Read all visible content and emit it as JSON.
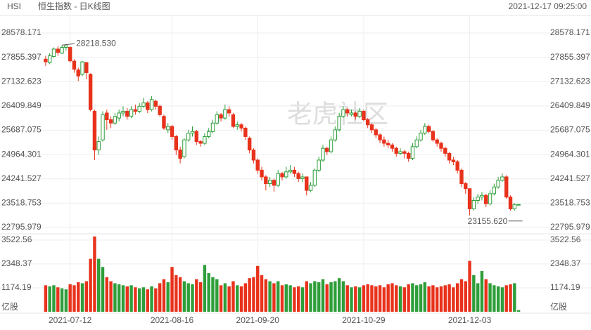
{
  "chart_data": {
    "type": "candlestick",
    "symbol": "HSI",
    "title": "恒生指数 - 日K线图",
    "timestamp": "2021-12-17 09:25:00",
    "watermark": "老虎社区",
    "up_color": "#2e9e3a",
    "down_color": "#e8321c",
    "grid": true,
    "ylim": [
      22608,
      28766
    ],
    "yticks": [
      28578.171,
      27855.397,
      27132.623,
      26409.849,
      25687.075,
      24964.301,
      24241.527,
      23518.753,
      22795.979
    ],
    "volume_ylim": [
      0,
      3795
    ],
    "volume_yticks": [
      1174.19,
      2348.37,
      3522.56
    ],
    "volume_unit": "亿股",
    "xticks": [
      {
        "value": 6,
        "label": "2021-07-12"
      },
      {
        "value": 31,
        "label": "2021-08-16"
      },
      {
        "value": 52,
        "label": "2021-09-20"
      },
      {
        "value": 78,
        "label": "2021-10-29"
      },
      {
        "value": 104,
        "label": "2021-12-03"
      }
    ],
    "high_label": "28218.530",
    "low_label": "23155.620",
    "candles": [
      [
        27800,
        27900,
        27600,
        27720
      ],
      [
        27700,
        27980,
        27650,
        27900
      ],
      [
        27880,
        28150,
        27850,
        28100
      ],
      [
        28100,
        28180,
        27900,
        28000
      ],
      [
        27980,
        28218.53,
        27950,
        28150
      ],
      [
        28150,
        28205,
        28050,
        28200
      ],
      [
        28150,
        28180,
        27700,
        27750
      ],
      [
        27740,
        27800,
        27400,
        27500
      ],
      [
        27480,
        27550,
        27150,
        27300
      ],
      [
        27350,
        27750,
        27300,
        27720
      ],
      [
        27700,
        27720,
        27200,
        27400
      ],
      [
        27350,
        27380,
        26250,
        26300
      ],
      [
        26250,
        26300,
        24800,
        25100
      ],
      [
        25100,
        25500,
        24950,
        25350
      ],
      [
        25400,
        26250,
        25350,
        26150
      ],
      [
        26200,
        26300,
        25700,
        26000
      ],
      [
        26000,
        26100,
        25750,
        25900
      ],
      [
        25900,
        26200,
        25850,
        26100
      ],
      [
        26050,
        26300,
        25950,
        26200
      ],
      [
        26200,
        26400,
        26100,
        26250
      ],
      [
        26250,
        26350,
        26000,
        26100
      ],
      [
        26100,
        26400,
        26050,
        26300
      ],
      [
        26300,
        26450,
        26150,
        26250
      ],
      [
        26250,
        26500,
        26200,
        26400
      ],
      [
        26400,
        26650,
        26350,
        26500
      ],
      [
        26500,
        26550,
        26200,
        26300
      ],
      [
        26300,
        26700,
        26250,
        26600
      ],
      [
        26550,
        26600,
        26300,
        26400
      ],
      [
        26400,
        26450,
        26100,
        26150
      ],
      [
        26100,
        26150,
        25700,
        25750
      ],
      [
        25700,
        25900,
        25600,
        25800
      ],
      [
        25800,
        25850,
        25400,
        25500
      ],
      [
        25500,
        25550,
        24950,
        25100
      ],
      [
        25100,
        25200,
        24700,
        24850
      ],
      [
        24900,
        25450,
        24850,
        25400
      ],
      [
        25400,
        25700,
        25350,
        25600
      ],
      [
        25600,
        25800,
        25500,
        25650
      ],
      [
        25650,
        25700,
        25250,
        25350
      ],
      [
        25350,
        25400,
        25200,
        25300
      ],
      [
        25300,
        25600,
        25250,
        25500
      ],
      [
        25500,
        25750,
        25450,
        25650
      ],
      [
        25650,
        26000,
        25600,
        25900
      ],
      [
        25900,
        26250,
        25850,
        26150
      ],
      [
        26150,
        26200,
        25950,
        26050
      ],
      [
        26050,
        26450,
        26000,
        26300
      ],
      [
        26300,
        26400,
        26100,
        26200
      ],
      [
        26150,
        26200,
        25750,
        25800
      ],
      [
        25800,
        25950,
        25700,
        25850
      ],
      [
        25850,
        25900,
        25650,
        25750
      ],
      [
        25750,
        25800,
        25400,
        25500
      ],
      [
        25450,
        25500,
        25000,
        25100
      ],
      [
        25100,
        25150,
        24700,
        24800
      ],
      [
        24800,
        24850,
        24400,
        24500
      ],
      [
        24500,
        24600,
        24200,
        24300
      ],
      [
        24300,
        24350,
        23900,
        24100
      ],
      [
        24100,
        24300,
        24000,
        24200
      ],
      [
        24200,
        24250,
        23850,
        24050
      ],
      [
        24050,
        24500,
        24000,
        24400
      ],
      [
        24400,
        24450,
        24200,
        24300
      ],
      [
        24300,
        24600,
        24250,
        24450
      ],
      [
        24450,
        24650,
        24400,
        24500
      ],
      [
        24500,
        24600,
        24300,
        24400
      ],
      [
        24400,
        24450,
        24150,
        24250
      ],
      [
        24250,
        24400,
        24150,
        24300
      ],
      [
        24300,
        24300,
        23750,
        23900
      ],
      [
        23900,
        24150,
        23850,
        24050
      ],
      [
        24050,
        24550,
        24000,
        24500
      ],
      [
        24500,
        24900,
        24450,
        24800
      ],
      [
        24800,
        25250,
        24750,
        25150
      ],
      [
        25150,
        25200,
        24950,
        25050
      ],
      [
        25050,
        25500,
        25000,
        25400
      ],
      [
        25400,
        25800,
        25350,
        25700
      ],
      [
        25700,
        26200,
        25650,
        26100
      ],
      [
        26100,
        26400,
        26050,
        26300
      ],
      [
        26300,
        26350,
        26100,
        26200
      ],
      [
        26150,
        26300,
        26100,
        26200
      ],
      [
        26200,
        26250,
        26000,
        26100
      ],
      [
        26100,
        26350,
        26050,
        26250
      ],
      [
        26250,
        26300,
        25950,
        26000
      ],
      [
        26000,
        26050,
        25750,
        25850
      ],
      [
        25850,
        25900,
        25600,
        25700
      ],
      [
        25700,
        25750,
        25450,
        25550
      ],
      [
        25550,
        25600,
        25300,
        25400
      ],
      [
        25400,
        25500,
        25200,
        25300
      ],
      [
        25300,
        25400,
        25150,
        25250
      ],
      [
        25250,
        25300,
        25050,
        25150
      ],
      [
        25150,
        25200,
        24900,
        25000
      ],
      [
        25000,
        25150,
        24950,
        25050
      ],
      [
        25050,
        25100,
        24850,
        25000
      ],
      [
        25000,
        25050,
        24750,
        24850
      ],
      [
        24850,
        25300,
        24800,
        25200
      ],
      [
        25200,
        25500,
        25150,
        25400
      ],
      [
        25400,
        25700,
        25350,
        25600
      ],
      [
        25600,
        25900,
        25550,
        25800
      ],
      [
        25800,
        25850,
        25600,
        25650
      ],
      [
        25650,
        25700,
        25350,
        25400
      ],
      [
        25400,
        25450,
        25200,
        25300
      ],
      [
        25300,
        25350,
        25050,
        25150
      ],
      [
        25150,
        25200,
        24900,
        25000
      ],
      [
        25000,
        25050,
        24700,
        24800
      ],
      [
        24800,
        24900,
        24650,
        24750
      ],
      [
        24750,
        24800,
        24400,
        24500
      ],
      [
        24500,
        24550,
        24000,
        24100
      ],
      [
        24100,
        24150,
        23800,
        23950
      ],
      [
        23950,
        23950,
        23155.62,
        23350
      ],
      [
        23350,
        23700,
        23300,
        23600
      ],
      [
        23600,
        23800,
        23500,
        23700
      ],
      [
        23700,
        23850,
        23600,
        23750
      ],
      [
        23750,
        23800,
        23400,
        23500
      ],
      [
        23500,
        23900,
        23450,
        23800
      ],
      [
        23800,
        24100,
        23750,
        24000
      ],
      [
        24000,
        24300,
        23950,
        24200
      ],
      [
        24200,
        24400,
        24150,
        24300
      ],
      [
        24300,
        24350,
        23650,
        23700
      ],
      [
        23700,
        23750,
        23300,
        23350
      ],
      [
        23350,
        23520,
        23300,
        23480
      ],
      [
        23480,
        23490,
        23470,
        23480
      ]
    ],
    "volumes": [
      1300,
      1250,
      1300,
      1200,
      1150,
      1100,
      1350,
      1300,
      1450,
      1400,
      1500,
      2600,
      3700,
      2600,
      2200,
      1700,
      1500,
      1400,
      1350,
      1300,
      1250,
      1300,
      1200,
      1150,
      1200,
      1100,
      1250,
      1150,
      1400,
      1600,
      1450,
      2200,
      1800,
      1700,
      1500,
      1400,
      1350,
      1600,
      1450,
      2300,
      1900,
      1700,
      1600,
      1300,
      1400,
      1250,
      1500,
      1300,
      1250,
      1400,
      1650,
      1700,
      2250,
      1800,
      1600,
      1500,
      1400,
      1500,
      1300,
      1350,
      1300,
      1200,
      1250,
      1200,
      1500,
      1400,
      1500,
      1450,
      1600,
      1350,
      1450,
      1500,
      1650,
      1500,
      1300,
      1200,
      1250,
      1200,
      1300,
      1350,
      1300,
      1250,
      1300,
      1200,
      1350,
      1400,
      1300,
      1250,
      1200,
      1350,
      1400,
      1300,
      1350,
      1450,
      1250,
      1300,
      1200,
      1250,
      1300,
      1350,
      1200,
      1400,
      1600,
      1500,
      2500,
      1800,
      1400,
      2000,
      1600,
      1400,
      1300,
      1250,
      1200,
      1300,
      1350,
      1400,
      80
    ]
  }
}
